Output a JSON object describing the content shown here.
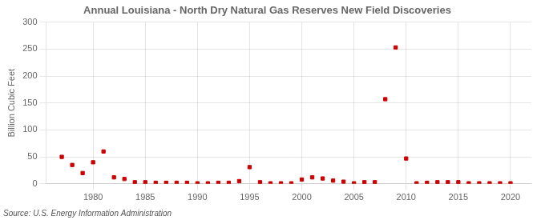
{
  "chart_data": {
    "type": "scatter",
    "title": "Annual Louisiana - North Dry Natural Gas Reserves New Field Discoveries",
    "ylabel": "Billion Cubic Feet",
    "source": "Source: U.S. Energy Information Administration",
    "x": [
      1977,
      1978,
      1979,
      1980,
      1981,
      1982,
      1983,
      1984,
      1985,
      1986,
      1987,
      1988,
      1989,
      1990,
      1991,
      1992,
      1993,
      1994,
      1995,
      1996,
      1997,
      1998,
      1999,
      2000,
      2001,
      2002,
      2003,
      2004,
      2005,
      2006,
      2007,
      2008,
      2009,
      2010,
      2011,
      2012,
      2013,
      2014,
      2015,
      2016,
      2017,
      2018,
      2019,
      2020
    ],
    "values": [
      50,
      35,
      20,
      40,
      60,
      12,
      9,
      3,
      3,
      2,
      2,
      2,
      2,
      1,
      1,
      2,
      2,
      5,
      31,
      3,
      1,
      1,
      1,
      8,
      12,
      10,
      6,
      4,
      1,
      3,
      3,
      157,
      253,
      47,
      1,
      2,
      3,
      3,
      3,
      1,
      1,
      1,
      1,
      1
    ],
    "color": "#cc0000",
    "marker": "square",
    "xlim": [
      1975.5,
      2022
    ],
    "xticks": [
      1980,
      1985,
      1990,
      1995,
      2000,
      2005,
      2010,
      2015,
      2020
    ],
    "ylim": [
      0,
      300
    ],
    "yticks": [
      0,
      50,
      100,
      150,
      200,
      250,
      300
    ],
    "grid": true
  }
}
